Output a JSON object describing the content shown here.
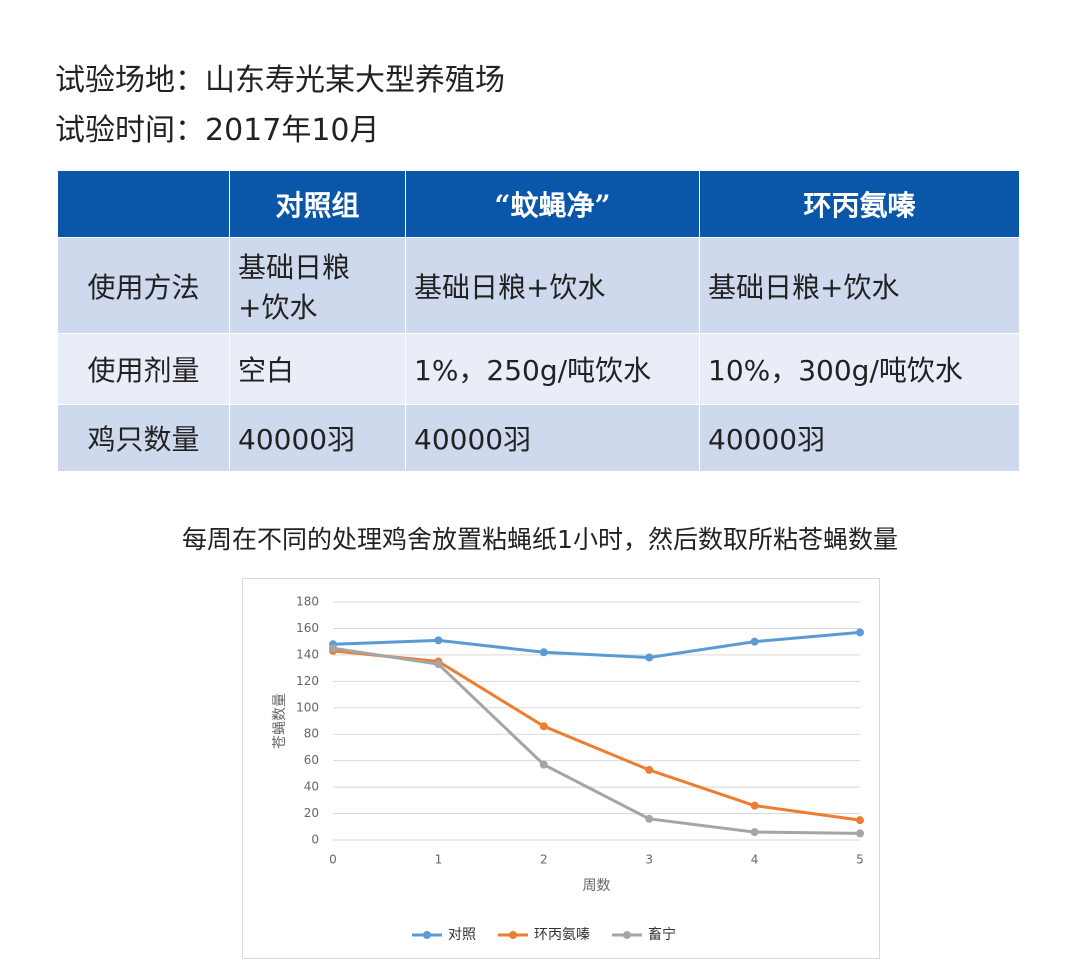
{
  "header": {
    "lines": [
      "试验场地：山东寿光某大型养殖场",
      "试验时间：2017年10月"
    ]
  },
  "table": {
    "columns": [
      "对照组",
      "“蚊蝇净”",
      "环丙氨嗪"
    ],
    "rows": [
      [
        "使用方法",
        "基础日粮+饮水",
        "基础日粮+饮水",
        "基础日粮+饮水"
      ],
      [
        "使用剂量",
        "空白",
        "1%，250g/吨饮水",
        "10%，300g/吨饮水"
      ],
      [
        "鸡只数量",
        "40000羽",
        "40000羽",
        "40000羽"
      ]
    ]
  },
  "caption": "每周在不同的处理鸡舍放置粘蝇纸1小时，然后数取所粘苍蝇数量",
  "chart_data": {
    "type": "line",
    "xlabel": "周数",
    "ylabel": "苍蝇数量",
    "x": [
      0,
      1,
      2,
      3,
      4,
      5
    ],
    "xlim": [
      0,
      5
    ],
    "xticks": [
      0,
      1,
      2,
      3,
      4,
      5
    ],
    "ylim": [
      0,
      180
    ],
    "yticks": [
      0,
      20,
      40,
      60,
      80,
      100,
      120,
      140,
      160,
      180
    ],
    "grid": true,
    "legend": "bottom",
    "series": [
      {
        "name": "对照",
        "color": "#5b9bd5",
        "values": [
          148,
          151,
          142,
          138,
          150,
          157
        ]
      },
      {
        "name": "环丙氨嗪",
        "color": "#ed7d31",
        "values": [
          143,
          135,
          86,
          53,
          26,
          15
        ]
      },
      {
        "name": "畜宁",
        "color": "#a5a5a5",
        "values": [
          145,
          133,
          57,
          16,
          6,
          5
        ]
      }
    ]
  }
}
